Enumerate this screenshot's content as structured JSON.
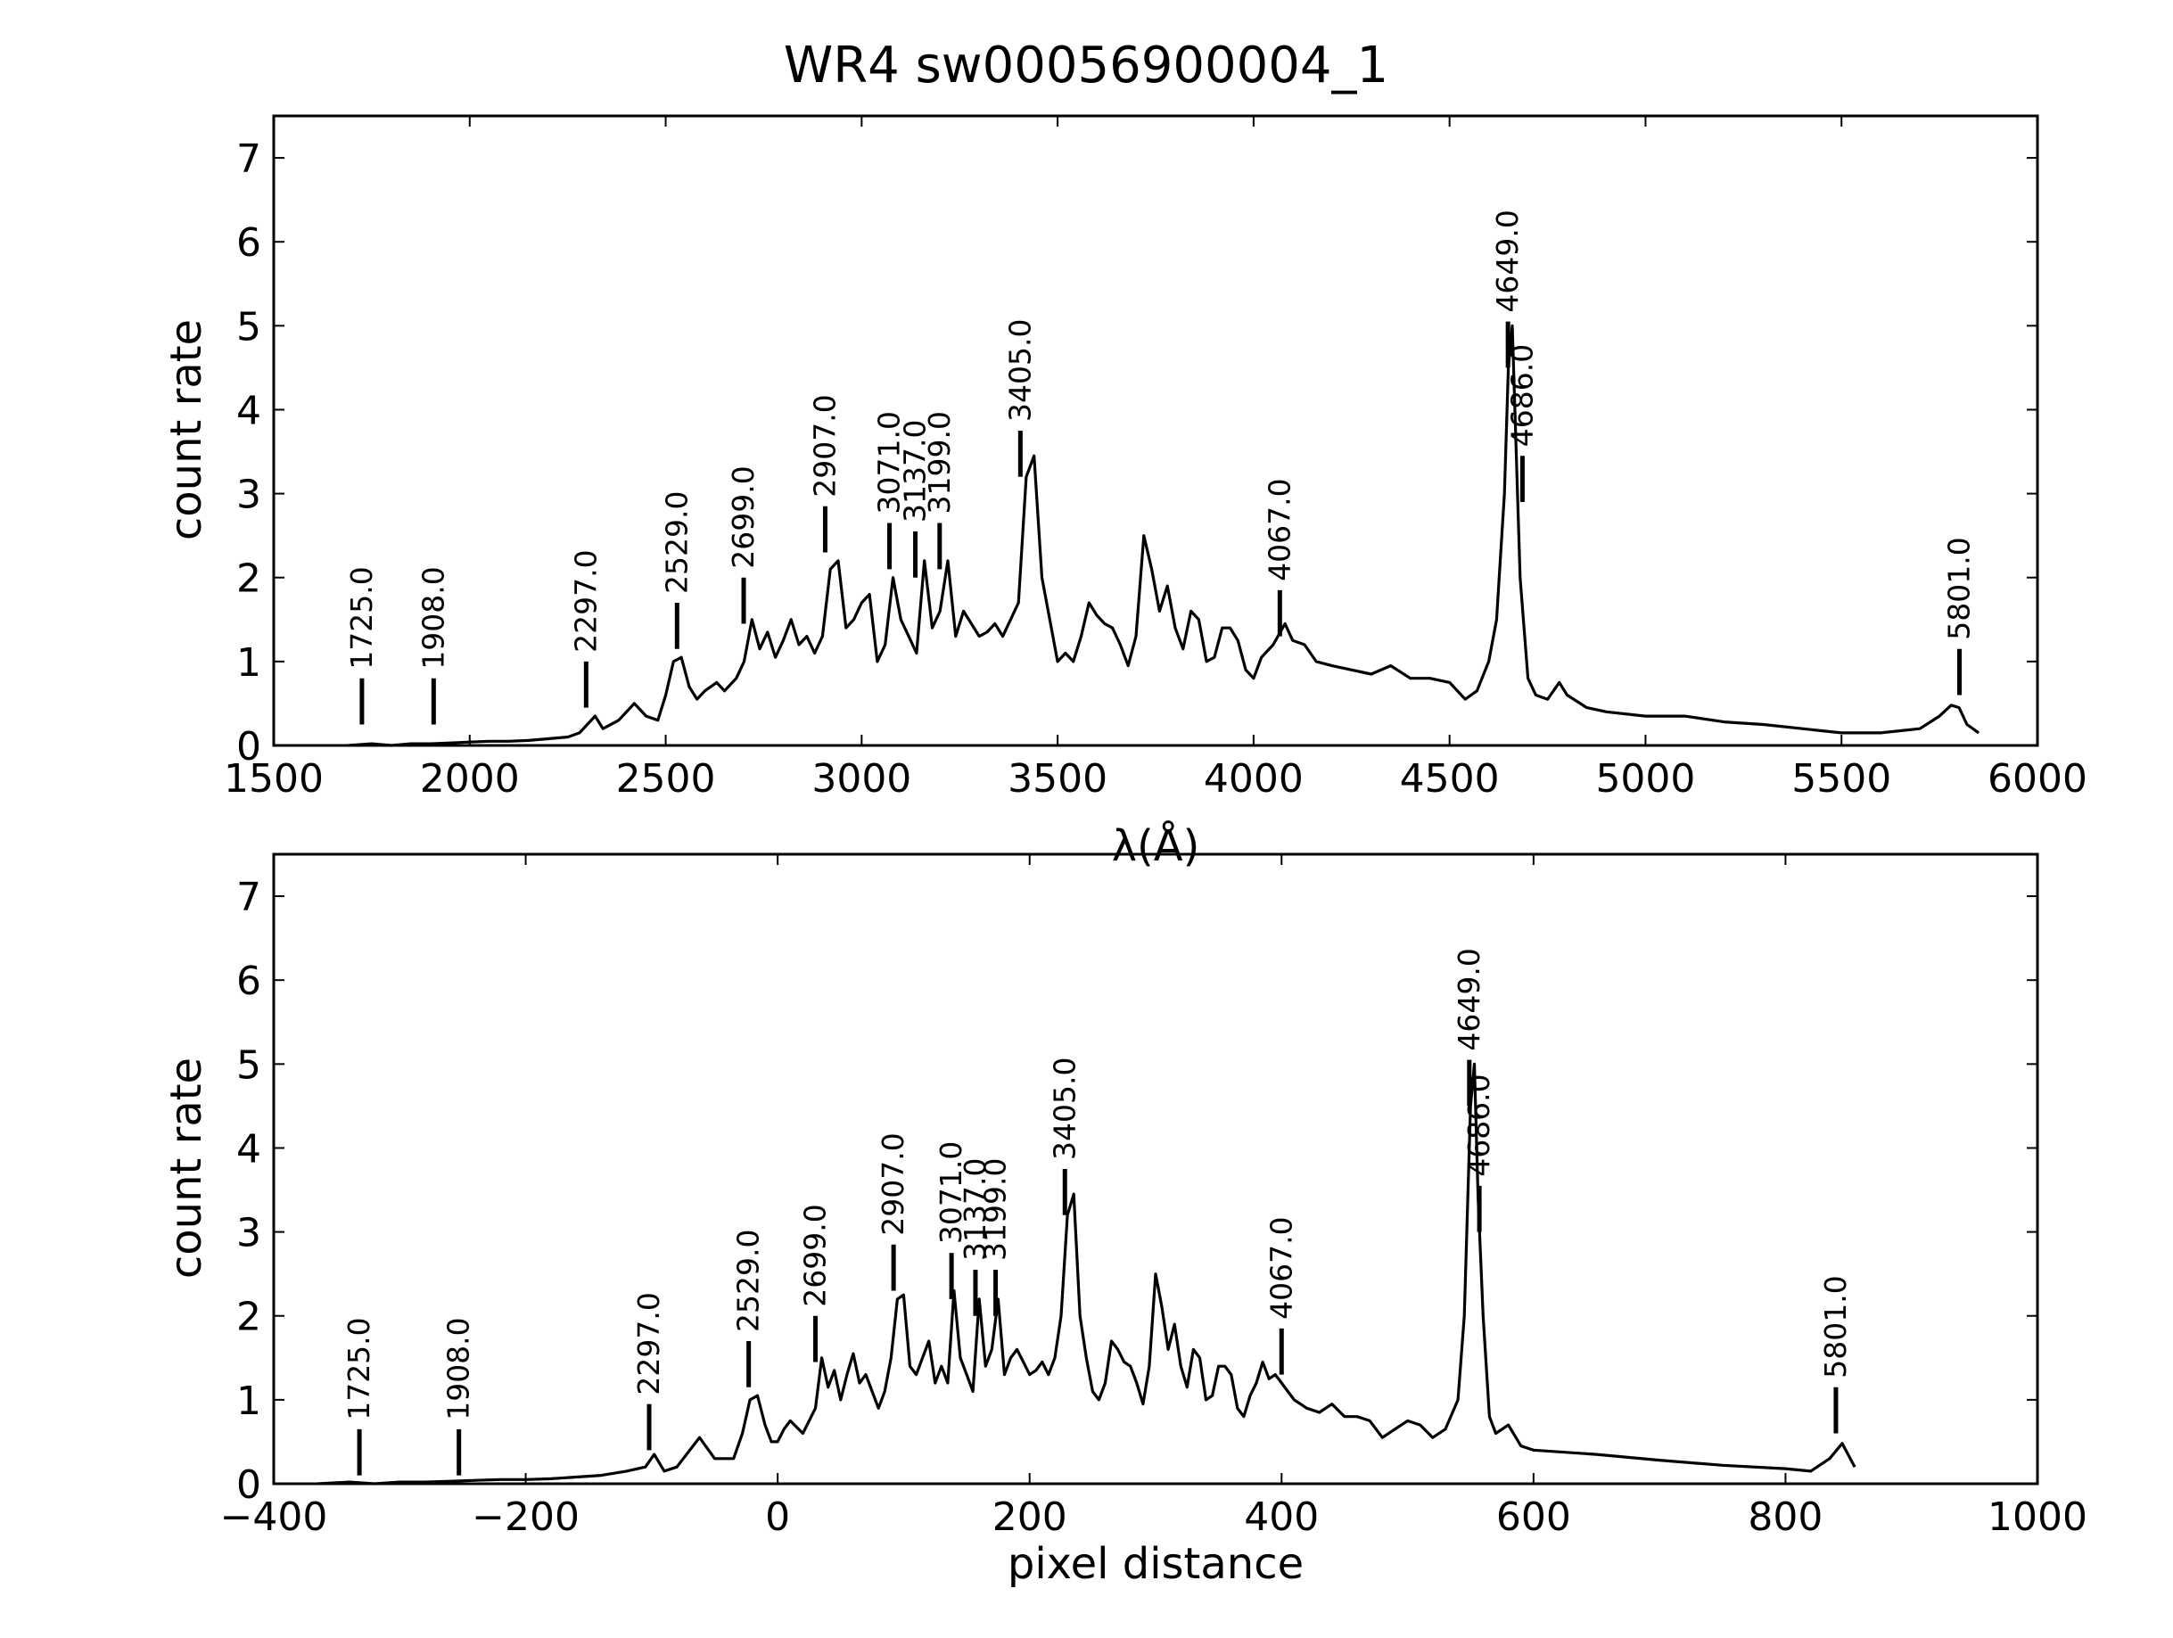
{
  "title": "WR4  sw00056900004_1",
  "chart_data": [
    {
      "type": "line",
      "xlabel": "λ(Å)",
      "ylabel": "count rate",
      "xlim": [
        1500,
        6000
      ],
      "ylim": [
        0,
        7.5
      ],
      "xticks": [
        1500,
        2000,
        2500,
        3000,
        3500,
        4000,
        4500,
        5000,
        5500,
        6000
      ],
      "xtick_labels": [
        "1500",
        "2000",
        "2500",
        "3000",
        "3500",
        "4000",
        "4500",
        "5000",
        "5500",
        "6000"
      ],
      "yticks": [
        0,
        1,
        2,
        3,
        4,
        5,
        6,
        7
      ],
      "ytick_labels": [
        "0",
        "1",
        "2",
        "3",
        "4",
        "5",
        "6",
        "7"
      ],
      "grid": false,
      "series": [
        {
          "x": [
            1690,
            1750,
            1800,
            1850,
            1900,
            1950,
            2000,
            2050,
            2100,
            2150,
            2200,
            2250,
            2280,
            2300,
            2320,
            2340,
            2380,
            2420,
            2450,
            2480,
            2500,
            2520,
            2540,
            2560,
            2580,
            2600,
            2630,
            2650,
            2680,
            2700,
            2720,
            2740,
            2760,
            2780,
            2800,
            2820,
            2840,
            2860,
            2880,
            2900,
            2920,
            2940,
            2960,
            2980,
            3000,
            3020,
            3040,
            3060,
            3080,
            3100,
            3120,
            3140,
            3160,
            3180,
            3200,
            3220,
            3240,
            3260,
            3280,
            3300,
            3320,
            3340,
            3360,
            3380,
            3400,
            3420,
            3440,
            3460,
            3480,
            3500,
            3520,
            3540,
            3560,
            3580,
            3600,
            3620,
            3640,
            3660,
            3680,
            3700,
            3720,
            3740,
            3760,
            3780,
            3800,
            3820,
            3840,
            3860,
            3880,
            3900,
            3920,
            3940,
            3960,
            3980,
            4000,
            4020,
            4050,
            4080,
            4100,
            4130,
            4160,
            4200,
            4250,
            4300,
            4350,
            4400,
            4450,
            4500,
            4540,
            4570,
            4600,
            4620,
            4640,
            4650,
            4660,
            4670,
            4680,
            4700,
            4720,
            4750,
            4780,
            4800,
            4850,
            4900,
            5000,
            5100,
            5200,
            5300,
            5400,
            5500,
            5600,
            5700,
            5750,
            5780,
            5800,
            5820,
            5850
          ],
          "y": [
            0.0,
            0.02,
            0.0,
            0.02,
            0.02,
            0.03,
            0.04,
            0.05,
            0.05,
            0.06,
            0.08,
            0.1,
            0.15,
            0.25,
            0.35,
            0.2,
            0.3,
            0.5,
            0.35,
            0.3,
            0.6,
            1.0,
            1.05,
            0.7,
            0.55,
            0.65,
            0.75,
            0.65,
            0.8,
            1.0,
            1.5,
            1.15,
            1.35,
            1.05,
            1.25,
            1.5,
            1.2,
            1.3,
            1.1,
            1.3,
            2.1,
            2.2,
            1.4,
            1.5,
            1.7,
            1.8,
            1.0,
            1.2,
            2.0,
            1.5,
            1.3,
            1.1,
            2.2,
            1.4,
            1.6,
            2.2,
            1.3,
            1.6,
            1.45,
            1.3,
            1.35,
            1.45,
            1.3,
            1.5,
            1.7,
            3.2,
            3.45,
            2.0,
            1.5,
            1.0,
            1.1,
            1.0,
            1.3,
            1.7,
            1.55,
            1.45,
            1.4,
            1.2,
            0.95,
            1.3,
            2.5,
            2.1,
            1.6,
            1.9,
            1.4,
            1.15,
            1.6,
            1.5,
            1.0,
            1.05,
            1.4,
            1.4,
            1.25,
            0.9,
            0.8,
            1.05,
            1.2,
            1.45,
            1.25,
            1.2,
            1.0,
            0.95,
            0.9,
            0.85,
            0.95,
            0.8,
            0.8,
            0.75,
            0.55,
            0.65,
            1.0,
            1.5,
            3.0,
            4.5,
            5.0,
            3.5,
            2.0,
            0.8,
            0.6,
            0.55,
            0.75,
            0.6,
            0.45,
            0.4,
            0.35,
            0.35,
            0.28,
            0.25,
            0.2,
            0.15,
            0.15,
            0.2,
            0.35,
            0.48,
            0.45,
            0.25,
            0.15
          ]
        }
      ],
      "annotations": [
        {
          "label": "1725.0",
          "x": 1725,
          "y": 0.25
        },
        {
          "label": "1908.0",
          "x": 1908,
          "y": 0.25
        },
        {
          "label": "2297.0",
          "x": 2297,
          "y": 0.45
        },
        {
          "label": "2529.0",
          "x": 2529,
          "y": 1.15
        },
        {
          "label": "2699.0",
          "x": 2699,
          "y": 1.45
        },
        {
          "label": "2907.0",
          "x": 2907,
          "y": 2.3
        },
        {
          "label": "3071.0",
          "x": 3071,
          "y": 2.1
        },
        {
          "label": "3137.0",
          "x": 3137,
          "y": 2.0
        },
        {
          "label": "3199.0",
          "x": 3199,
          "y": 2.1
        },
        {
          "label": "3405.0",
          "x": 3405,
          "y": 3.2
        },
        {
          "label": "4067.0",
          "x": 4067,
          "y": 1.3
        },
        {
          "label": "4649.0",
          "x": 4649,
          "y": 4.5
        },
        {
          "label": "4686.0",
          "x": 4686,
          "y": 2.9
        },
        {
          "label": "5801.0",
          "x": 5801,
          "y": 0.6
        }
      ]
    },
    {
      "type": "line",
      "xlabel": "pixel distance",
      "ylabel": "count rate",
      "xlim": [
        -400,
        1000
      ],
      "ylim": [
        0,
        7.5
      ],
      "xticks": [
        -400,
        -200,
        0,
        200,
        400,
        600,
        800,
        1000
      ],
      "xtick_labels": [
        "−400",
        "−200",
        "0",
        "200",
        "400",
        "600",
        "800",
        "1000"
      ],
      "yticks": [
        0,
        1,
        2,
        3,
        4,
        5,
        6,
        7
      ],
      "ytick_labels": [
        "0",
        "1",
        "2",
        "3",
        "4",
        "5",
        "6",
        "7"
      ],
      "grid": false,
      "series": [
        {
          "x": [
            -365,
            -340,
            -320,
            -300,
            -280,
            -260,
            -240,
            -220,
            -200,
            -180,
            -160,
            -140,
            -120,
            -105,
            -98,
            -90,
            -80,
            -62,
            -50,
            -35,
            -28,
            -22,
            -16,
            -10,
            -5,
            0,
            5,
            10,
            20,
            30,
            35,
            40,
            45,
            50,
            55,
            60,
            65,
            70,
            75,
            80,
            85,
            90,
            95,
            100,
            105,
            110,
            115,
            120,
            125,
            130,
            135,
            140,
            145,
            150,
            155,
            160,
            165,
            170,
            175,
            180,
            185,
            190,
            195,
            200,
            205,
            210,
            215,
            220,
            225,
            230,
            235,
            240,
            245,
            250,
            255,
            260,
            265,
            270,
            275,
            280,
            285,
            290,
            295,
            300,
            305,
            310,
            315,
            320,
            325,
            330,
            335,
            340,
            345,
            350,
            355,
            360,
            365,
            370,
            375,
            380,
            385,
            390,
            395,
            400,
            405,
            410,
            415,
            420,
            430,
            440,
            450,
            460,
            470,
            480,
            490,
            500,
            510,
            520,
            530,
            540,
            545,
            550,
            553,
            556,
            560,
            565,
            570,
            580,
            590,
            600,
            650,
            700,
            750,
            800,
            820,
            835,
            845,
            855
          ],
          "y": [
            0.0,
            0.02,
            0.0,
            0.02,
            0.02,
            0.03,
            0.04,
            0.05,
            0.05,
            0.06,
            0.08,
            0.1,
            0.15,
            0.2,
            0.35,
            0.15,
            0.2,
            0.55,
            0.3,
            0.3,
            0.6,
            1.0,
            1.05,
            0.7,
            0.5,
            0.5,
            0.65,
            0.75,
            0.6,
            0.9,
            1.5,
            1.15,
            1.35,
            1.0,
            1.3,
            1.55,
            1.2,
            1.3,
            1.1,
            0.9,
            1.1,
            1.5,
            2.2,
            2.25,
            1.4,
            1.3,
            1.5,
            1.7,
            1.2,
            1.4,
            1.2,
            2.3,
            1.5,
            1.3,
            1.1,
            2.2,
            1.4,
            1.6,
            2.2,
            1.3,
            1.5,
            1.6,
            1.45,
            1.3,
            1.35,
            1.45,
            1.3,
            1.5,
            2.0,
            3.2,
            3.45,
            2.0,
            1.5,
            1.1,
            1.0,
            1.2,
            1.7,
            1.6,
            1.45,
            1.4,
            1.2,
            0.95,
            1.4,
            2.5,
            2.1,
            1.6,
            1.9,
            1.4,
            1.15,
            1.6,
            1.5,
            1.0,
            1.05,
            1.4,
            1.4,
            1.3,
            0.9,
            0.8,
            1.05,
            1.2,
            1.45,
            1.25,
            1.3,
            1.2,
            1.1,
            1.0,
            0.95,
            0.9,
            0.85,
            0.95,
            0.8,
            0.8,
            0.75,
            0.55,
            0.65,
            0.75,
            0.7,
            0.55,
            0.65,
            1.0,
            2.0,
            4.5,
            5.0,
            3.4,
            2.0,
            0.8,
            0.6,
            0.7,
            0.45,
            0.4,
            0.35,
            0.28,
            0.22,
            0.18,
            0.15,
            0.3,
            0.48,
            0.2
          ]
        }
      ],
      "annotations": [
        {
          "label": "1725.0",
          "x": -332,
          "y": 0.1
        },
        {
          "label": "1908.0",
          "x": -253,
          "y": 0.1
        },
        {
          "label": "2297.0",
          "x": -102,
          "y": 0.4
        },
        {
          "label": "2529.0",
          "x": -23,
          "y": 1.15
        },
        {
          "label": "2699.0",
          "x": 30,
          "y": 1.45
        },
        {
          "label": "2907.0",
          "x": 92,
          "y": 2.3
        },
        {
          "label": "3071.0",
          "x": 138,
          "y": 2.2
        },
        {
          "label": "3137.0",
          "x": 157,
          "y": 2.0
        },
        {
          "label": "3199.0",
          "x": 173,
          "y": 2.0
        },
        {
          "label": "3405.0",
          "x": 228,
          "y": 3.2
        },
        {
          "label": "4067.0",
          "x": 400,
          "y": 1.3
        },
        {
          "label": "4649.0",
          "x": 549,
          "y": 4.5
        },
        {
          "label": "4686.0",
          "x": 557,
          "y": 3.0
        },
        {
          "label": "5801.0",
          "x": 840,
          "y": 0.6
        }
      ]
    }
  ]
}
